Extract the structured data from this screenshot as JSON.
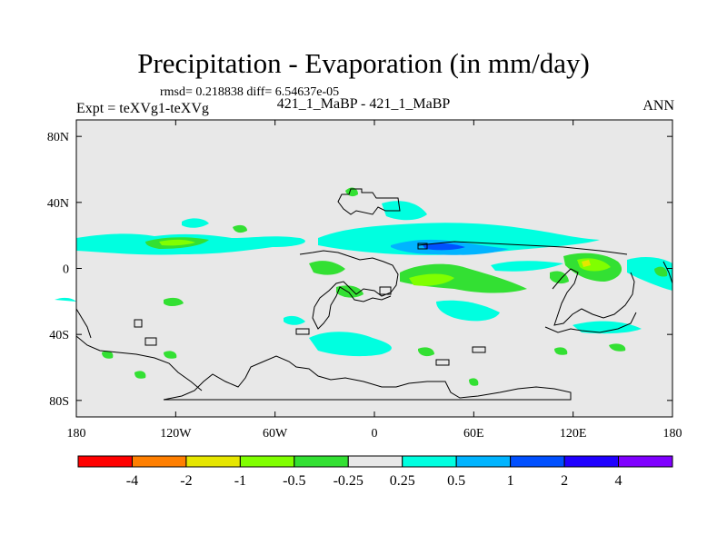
{
  "chart_data": {
    "type": "heatmap",
    "title": "Precipitation - Evaporation (in mm/day)",
    "stats_text": "rmsd= 0.218838 diff= 6.54637e-05",
    "left_label": "Expt = teXVg1-teXVg",
    "center_label": "421_1_MaBP - 421_1_MaBP",
    "right_label": "ANN",
    "x_ticks": [
      "180",
      "120W",
      "60W",
      "0",
      "60E",
      "120E",
      "180"
    ],
    "y_ticks": [
      "80N",
      "40N",
      "0",
      "40S",
      "80S"
    ],
    "xlim": [
      -180,
      180
    ],
    "ylim": [
      -90,
      90
    ],
    "colorbar": {
      "levels": [
        "-4",
        "-2",
        "-1",
        "-0.5",
        "-0.25",
        "0.25",
        "0.5",
        "1",
        "2",
        "4"
      ],
      "colors": [
        "#ff0000",
        "#ff7f00",
        "#e6e600",
        "#80ff00",
        "#33e033",
        "#e8e8e8",
        "#00ffe0",
        "#00b4ff",
        "#0050ff",
        "#2000ff",
        "#8000ff"
      ]
    },
    "background_color": "#e8e8e8"
  }
}
